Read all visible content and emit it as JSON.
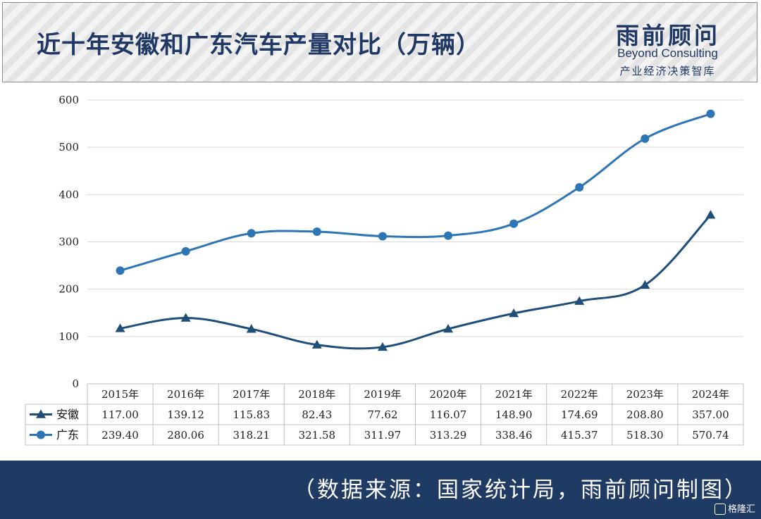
{
  "header": {
    "title": "近十年安徽和广东汽车产量对比（万辆）",
    "logo_cn": "雨前顾问",
    "logo_en": "Beyond Consulting",
    "logo_sub": "产业经济决策智库"
  },
  "footer": {
    "source": "（数据来源：国家统计局，雨前顾问制图）",
    "watermark": "格隆汇"
  },
  "colors": {
    "anhui": "#1f4e79",
    "guangdong": "#2e75b6",
    "title": "#1f3864",
    "footer_bg": "#1f3a63"
  },
  "chart_data": {
    "type": "line",
    "title": "",
    "categories": [
      "2015年",
      "2016年",
      "2017年",
      "2018年",
      "2019年",
      "2020年",
      "2021年",
      "2022年",
      "2023年",
      "2024年"
    ],
    "ylim": [
      0,
      600
    ],
    "yticks": [
      0,
      100,
      200,
      300,
      400,
      500,
      600
    ],
    "grid": true,
    "legend": "data-table",
    "series": [
      {
        "name": "安徽",
        "marker": "triangle",
        "color": "#1f4e79",
        "values": [
          117.0,
          139.12,
          115.83,
          82.43,
          77.62,
          116.07,
          148.9,
          174.69,
          208.8,
          357.0
        ],
        "labels": [
          "117.00",
          "139.12",
          "115.83",
          "82.43",
          "77.62",
          "116.07",
          "148.90",
          "174.69",
          "208.80",
          "357.00"
        ]
      },
      {
        "name": "广东",
        "marker": "circle",
        "color": "#2e75b6",
        "values": [
          239.4,
          280.06,
          318.21,
          321.58,
          311.97,
          313.29,
          338.46,
          415.37,
          518.3,
          570.74
        ],
        "labels": [
          "239.40",
          "280.06",
          "318.21",
          "321.58",
          "311.97",
          "313.29",
          "338.46",
          "415.37",
          "518.30",
          "570.74"
        ]
      }
    ]
  }
}
